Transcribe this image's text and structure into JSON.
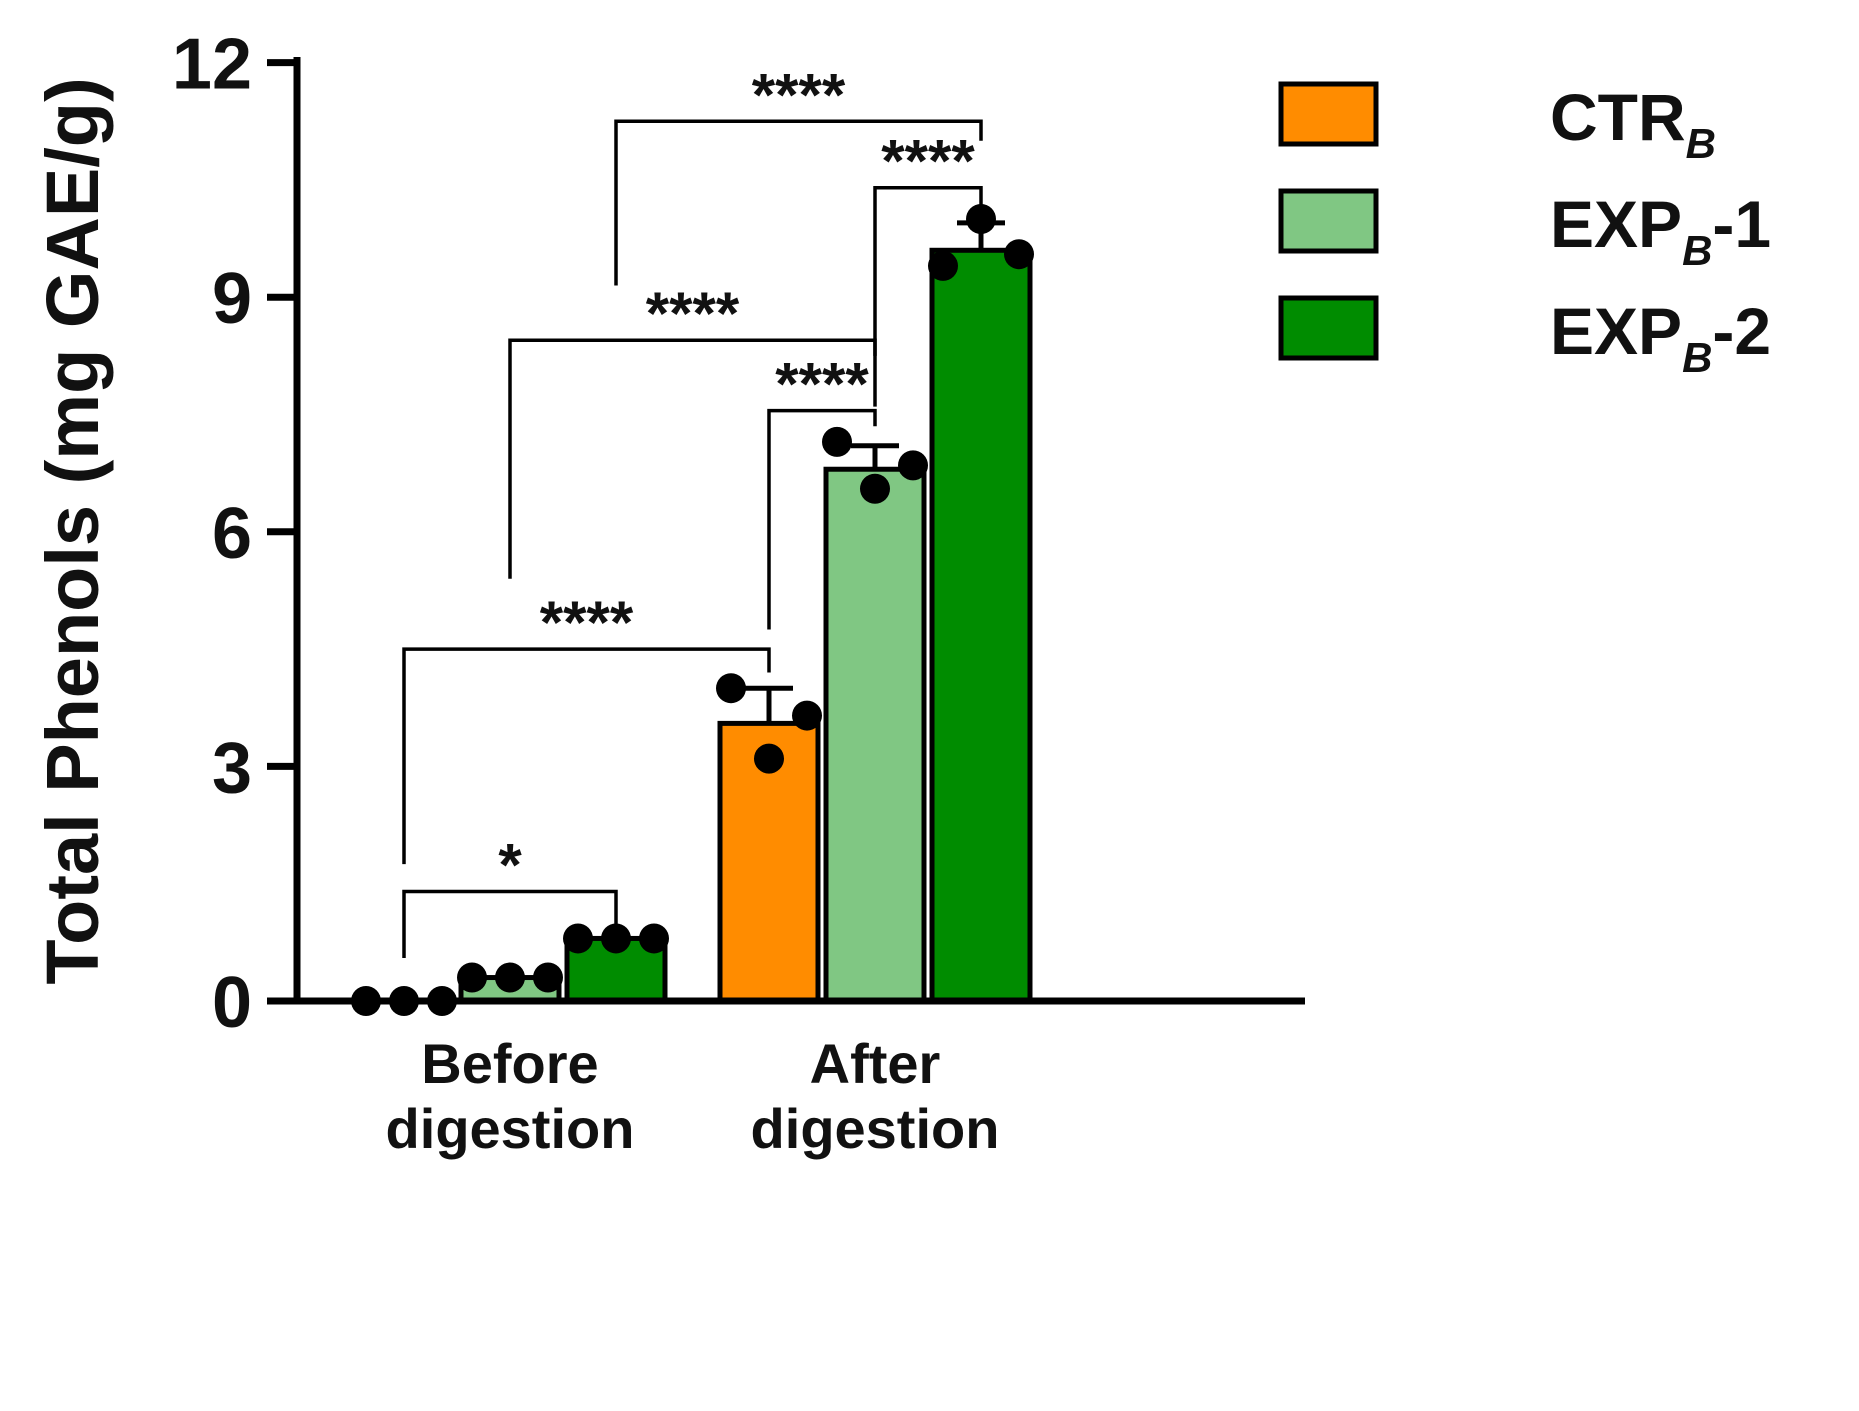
{
  "chart_data": {
    "type": "bar",
    "title": "",
    "xlabel": "",
    "ylabel": "Total Phenols  (mg GAE/g)",
    "ylim": [
      0,
      12
    ],
    "yticks": [
      0,
      3,
      6,
      9,
      12
    ],
    "ytick_labels": [
      "0",
      "3",
      "6",
      "9",
      "12"
    ],
    "categories": [
      {
        "line1": "Before",
        "line2": "digestion"
      },
      {
        "line1": "After",
        "line2": "digestion"
      }
    ],
    "series": [
      {
        "name": "CTR",
        "subscript": "B",
        "suffix": "",
        "color": "#FF8C00",
        "values": [
          0.0,
          3.55
        ],
        "errors": [
          0.0,
          0.45
        ],
        "points": [
          [
            0.0,
            0.0,
            0.0
          ],
          [
            4.0,
            3.1,
            3.65
          ]
        ]
      },
      {
        "name": "EXP",
        "subscript": "B",
        "suffix": "-1",
        "color": "#80C783",
        "values": [
          0.3,
          6.8
        ],
        "errors": [
          0.0,
          0.3
        ],
        "points": [
          [
            0.3,
            0.3,
            0.3
          ],
          [
            7.15,
            6.55,
            6.85
          ]
        ]
      },
      {
        "name": "EXP",
        "subscript": "B",
        "suffix": "-2",
        "color": "#008C00",
        "values": [
          0.8,
          9.6
        ],
        "errors": [
          0.0,
          0.35
        ],
        "points": [
          [
            0.8,
            0.8,
            0.8
          ],
          [
            9.4,
            10.0,
            9.55
          ]
        ]
      }
    ],
    "significance": [
      {
        "label": "*",
        "from": [
          0,
          0
        ],
        "to": [
          0,
          2
        ],
        "y": 1.4,
        "drop_from": 0.55,
        "drop_to": 0.95
      },
      {
        "label": "****",
        "from": [
          0,
          0
        ],
        "to": [
          1,
          0
        ],
        "y": 4.5,
        "drop_from": 1.75,
        "drop_to": 4.2
      },
      {
        "label": "****",
        "from": [
          0,
          1
        ],
        "to": [
          1,
          1
        ],
        "y": 8.45,
        "drop_from": 5.4,
        "drop_to": 8.25
      },
      {
        "label": "****",
        "from": [
          1,
          0
        ],
        "to": [
          1,
          1
        ],
        "y": 7.55,
        "drop_from": 4.75,
        "drop_to": 7.35
      },
      {
        "label": "****",
        "from": [
          0,
          2
        ],
        "to": [
          1,
          2
        ],
        "y": 11.25,
        "drop_from": 9.15,
        "drop_to": 11.0
      },
      {
        "label": "****",
        "from": [
          1,
          1
        ],
        "to": [
          1,
          2
        ],
        "y": 10.4,
        "drop_from": 7.6,
        "drop_to": 10.15
      }
    ],
    "legend_position": "top-right"
  }
}
